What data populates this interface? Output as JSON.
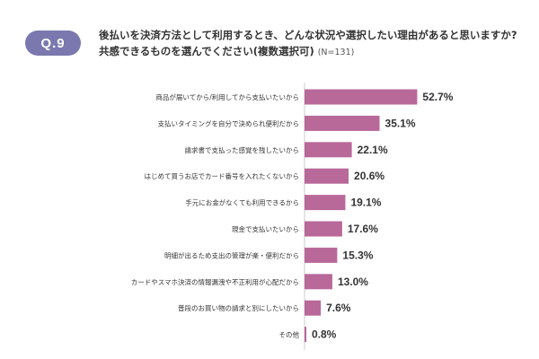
{
  "question": {
    "badge": "Q.9",
    "title": "後払いを決済方法として利用するとき、どんな状況や選択したい理由があると思いますか?共感できるものを選んでください(複数選択可)",
    "respondents": "(N=131)"
  },
  "colors": {
    "bar": "#b8699a",
    "badge": "#7a78ae",
    "axis": "#cccccc"
  },
  "chart_data": {
    "type": "bar",
    "orientation": "horizontal",
    "categories": [
      "商品が届いてから/利用してから支払いたいから",
      "支払いタイミングを自分で決められ便利だから",
      "請求書で支払った感覚を残したいから",
      "はじめて買うお店でカード番号を入れたくないから",
      "手元にお金がなくても利用できるから",
      "現金で支払いたいから",
      "明細が出るため支出の管理が楽・便利だから",
      "カードやスマホ決済の情報漏洩や不正利用が心配だから",
      "普段のお買い物の請求と別にしたいから",
      "その他"
    ],
    "values": [
      52.7,
      35.1,
      22.1,
      20.6,
      19.1,
      17.6,
      15.3,
      13.0,
      7.6,
      0.8
    ],
    "value_labels": [
      "52.7%",
      "35.1%",
      "22.1%",
      "20.6%",
      "19.1%",
      "17.6%",
      "15.3%",
      "13.0%",
      "7.6%",
      "0.8%"
    ],
    "xlim": [
      0,
      60
    ],
    "unit": "%"
  }
}
